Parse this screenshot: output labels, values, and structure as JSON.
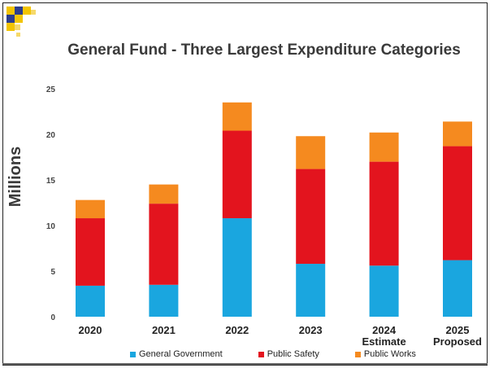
{
  "chart_data": {
    "type": "bar",
    "stacked": true,
    "title": "General Fund - Three Largest Expenditure Categories",
    "ylabel": "Millions",
    "ylim": [
      0,
      25
    ],
    "yticks": [
      0,
      5,
      10,
      15,
      20,
      25
    ],
    "categories": [
      [
        "2020"
      ],
      [
        "2021"
      ],
      [
        "2022"
      ],
      [
        "2023"
      ],
      [
        "2024",
        "Estimate"
      ],
      [
        "2025",
        "Proposed"
      ]
    ],
    "series": [
      {
        "name": "General Government",
        "color": "#1aa6df",
        "values": [
          3.4,
          3.5,
          10.8,
          5.8,
          5.6,
          6.2
        ]
      },
      {
        "name": "Public Safety",
        "color": "#e3141e",
        "values": [
          7.4,
          8.9,
          9.6,
          10.4,
          11.4,
          12.5
        ]
      },
      {
        "name": "Public Works",
        "color": "#f58a1f",
        "values": [
          2.0,
          2.1,
          3.1,
          3.6,
          3.2,
          2.7
        ]
      }
    ],
    "legend_position": "bottom",
    "grid": false
  }
}
